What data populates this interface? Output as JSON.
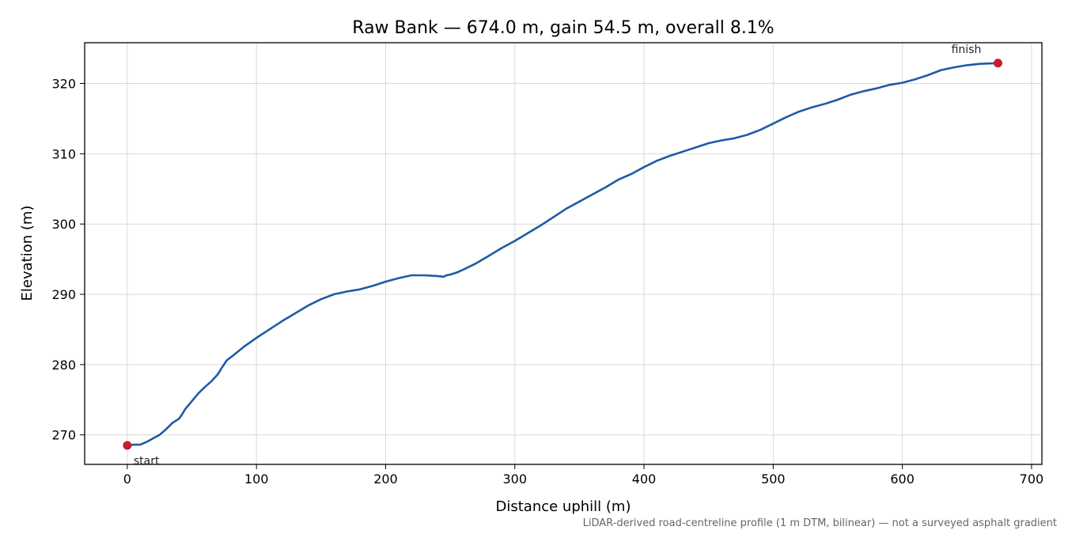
{
  "chart_data": {
    "type": "line",
    "title": "Raw Bank — 674.0 m, gain 54.5 m, overall 8.1%",
    "xlabel": "Distance uphill (m)",
    "ylabel": "Elevation (m)",
    "xlim": [
      -33,
      708
    ],
    "ylim": [
      265.8,
      325.8
    ],
    "xticks": [
      0,
      100,
      200,
      300,
      400,
      500,
      600,
      700
    ],
    "yticks": [
      270,
      280,
      290,
      300,
      310,
      320
    ],
    "grid": true,
    "colors": {
      "line": "#1f5aa8",
      "marker": "#c0202a"
    },
    "series": [
      {
        "x": [
          0,
          5,
          10,
          15,
          20,
          25,
          30,
          35,
          40,
          42,
          45,
          50,
          55,
          60,
          65,
          70,
          73,
          77,
          82,
          90,
          100,
          110,
          120,
          130,
          140,
          150,
          160,
          170,
          180,
          190,
          200,
          210,
          220,
          230,
          240,
          245,
          247,
          250,
          255,
          260,
          270,
          280,
          290,
          300,
          310,
          320,
          330,
          340,
          350,
          360,
          370,
          380,
          390,
          400,
          410,
          420,
          430,
          440,
          450,
          460,
          470,
          480,
          490,
          500,
          510,
          520,
          530,
          540,
          550,
          560,
          570,
          580,
          590,
          600,
          610,
          620,
          630,
          640,
          650,
          660,
          674
        ],
        "y": [
          268.5,
          268.6,
          268.6,
          269.0,
          269.5,
          270.0,
          270.8,
          271.7,
          272.3,
          272.8,
          273.7,
          274.8,
          275.9,
          276.8,
          277.6,
          278.6,
          279.5,
          280.6,
          281.3,
          282.5,
          283.8,
          285.0,
          286.2,
          287.3,
          288.4,
          289.3,
          290.0,
          290.4,
          290.7,
          291.2,
          291.8,
          292.3,
          292.7,
          292.7,
          292.6,
          292.5,
          292.7,
          292.8,
          293.1,
          293.5,
          294.4,
          295.5,
          296.6,
          297.6,
          298.7,
          299.8,
          301.0,
          302.2,
          303.2,
          304.2,
          305.2,
          306.3,
          307.1,
          308.1,
          309.0,
          309.7,
          310.3,
          310.9,
          311.5,
          311.9,
          312.2,
          312.7,
          313.4,
          314.3,
          315.2,
          316.0,
          316.6,
          317.1,
          317.7,
          318.4,
          318.9,
          319.3,
          319.8,
          320.1,
          320.6,
          321.2,
          321.9,
          322.3,
          322.6,
          322.8,
          322.9
        ]
      }
    ],
    "annotations": [
      {
        "text": "start",
        "x": 0,
        "y": 268.5
      },
      {
        "text": "finish",
        "x": 674,
        "y": 322.9
      }
    ],
    "footnote": "LiDAR-derived road-centreline profile (1 m DTM, bilinear) — not a surveyed asphalt gradient"
  }
}
